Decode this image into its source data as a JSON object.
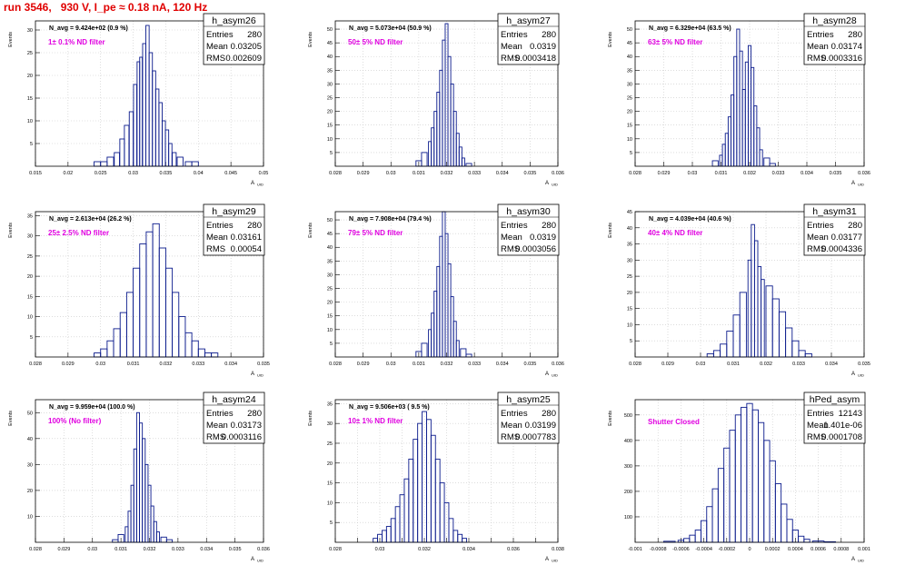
{
  "title": "run 3546,   930 V, I_pe ≈ 0.18 nA, 120 Hz",
  "colors": {
    "title": "#e00000",
    "histogram": "#0a1a8c",
    "annotation": "#e000e0",
    "grid": "#c8c8c8"
  },
  "common": {
    "ylabel": "Events",
    "xlabel": "A",
    "xlabel_sub": "UID"
  },
  "chart_data": [
    {
      "type": "bar",
      "name": "h_asym26",
      "nav_text": "N_avg = 9.424e+02 (0.9 %)",
      "annotation": "1± 0.1% ND filter",
      "stats": {
        "entries": "280",
        "mean": "0.03205",
        "rms": "0.002609"
      },
      "xlim": [
        0.015,
        0.05
      ],
      "ylim": [
        0,
        32
      ],
      "xticks": [
        0.015,
        0.02,
        0.025,
        0.03,
        0.035,
        0.04,
        0.045,
        0.05
      ],
      "xtick_labels": [
        "0.015",
        "0.02",
        "0.025",
        "0.03",
        "0.035",
        "0.04",
        "0.045",
        "0.05"
      ],
      "yticks": [
        5,
        10,
        15,
        20,
        25,
        30
      ],
      "x": [
        0.0245,
        0.0255,
        0.0265,
        0.0275,
        0.0283,
        0.029,
        0.0297,
        0.0303,
        0.0308,
        0.0312,
        0.0317,
        0.0322,
        0.0327,
        0.0332,
        0.0337,
        0.0342,
        0.0347,
        0.0352,
        0.0357,
        0.0363,
        0.0372,
        0.0385,
        0.0395
      ],
      "values": [
        1,
        1,
        2,
        3,
        6,
        9,
        12,
        18,
        23,
        24,
        27,
        31,
        25,
        21,
        17,
        14,
        10,
        8,
        5,
        3,
        2,
        1,
        1
      ]
    },
    {
      "type": "bar",
      "name": "h_asym27",
      "nav_text": "N_avg = 5.073e+04 (50.9 %)",
      "annotation": "50± 5% ND filter",
      "stats": {
        "entries": "280",
        "mean": "0.0319",
        "rms": "0.0003418"
      },
      "xlim": [
        0.028,
        0.036
      ],
      "ylim": [
        0,
        53
      ],
      "xticks": [
        0.028,
        0.029,
        0.03,
        0.031,
        0.032,
        0.033,
        0.034,
        0.035,
        0.036
      ],
      "xtick_labels": [
        "0.028",
        "0.029",
        "0.03",
        "0.031",
        "0.032",
        "0.033",
        "0.034",
        "0.035",
        "0.036"
      ],
      "yticks": [
        5,
        10,
        15,
        20,
        25,
        30,
        35,
        40,
        45,
        50
      ],
      "x": [
        0.031,
        0.0312,
        0.0314,
        0.0315,
        0.0316,
        0.0317,
        0.0318,
        0.0319,
        0.032,
        0.0321,
        0.0322,
        0.0323,
        0.0324,
        0.0325,
        0.0326,
        0.0328
      ],
      "values": [
        2,
        5,
        9,
        14,
        20,
        27,
        35,
        46,
        52,
        40,
        30,
        20,
        12,
        7,
        3,
        1
      ]
    },
    {
      "type": "bar",
      "name": "h_asym28",
      "nav_text": "N_avg = 6.329e+04 (63.5 %)",
      "annotation": "63± 5% ND filter",
      "stats": {
        "entries": "280",
        "mean": "0.03174",
        "rms": "0.0003316"
      },
      "xlim": [
        0.028,
        0.036
      ],
      "ylim": [
        0,
        53
      ],
      "xticks": [
        0.028,
        0.029,
        0.03,
        0.031,
        0.032,
        0.033,
        0.034,
        0.035,
        0.036
      ],
      "xtick_labels": [
        "0.028",
        "0.029",
        "0.03",
        "0.031",
        "0.032",
        "0.033",
        "0.034",
        "0.035",
        "0.036"
      ],
      "yticks": [
        5,
        10,
        15,
        20,
        25,
        30,
        35,
        40,
        45,
        50
      ],
      "x": [
        0.0308,
        0.031,
        0.0311,
        0.0312,
        0.0313,
        0.0314,
        0.0315,
        0.0316,
        0.0317,
        0.0318,
        0.0319,
        0.032,
        0.0321,
        0.0322,
        0.0323,
        0.0324,
        0.0326,
        0.0328
      ],
      "values": [
        2,
        4,
        8,
        12,
        18,
        26,
        40,
        50,
        42,
        28,
        38,
        44,
        36,
        22,
        14,
        6,
        3,
        1
      ]
    },
    {
      "type": "bar",
      "name": "h_asym29",
      "nav_text": "N_avg = 2.613e+04 (26.2 %)",
      "annotation": "25± 2.5% ND filter",
      "stats": {
        "entries": "280",
        "mean": "0.03161",
        "rms": "0.00054"
      },
      "xlim": [
        0.028,
        0.035
      ],
      "ylim": [
        0,
        36
      ],
      "xticks": [
        0.028,
        0.029,
        0.03,
        0.031,
        0.032,
        0.033,
        0.034,
        0.035
      ],
      "xtick_labels": [
        "0.028",
        "0.029",
        "0.03",
        "0.031",
        "0.032",
        "0.033",
        "0.034",
        "0.035"
      ],
      "yticks": [
        5,
        10,
        15,
        20,
        25,
        30,
        35
      ],
      "x": [
        0.0299,
        0.0301,
        0.0303,
        0.0305,
        0.0307,
        0.0309,
        0.0311,
        0.0313,
        0.0315,
        0.0317,
        0.0319,
        0.0321,
        0.0323,
        0.0325,
        0.0327,
        0.0329,
        0.0331,
        0.0333,
        0.0335
      ],
      "values": [
        1,
        2,
        4,
        7,
        11,
        16,
        22,
        28,
        31,
        33,
        27,
        22,
        16,
        10,
        6,
        4,
        2,
        1,
        1
      ]
    },
    {
      "type": "bar",
      "name": "h_asym30",
      "nav_text": "N_avg = 7.908e+04 (79.4 %)",
      "annotation": "79± 5% ND filter",
      "stats": {
        "entries": "280",
        "mean": "0.0319",
        "rms": "0.0003056"
      },
      "xlim": [
        0.028,
        0.036
      ],
      "ylim": [
        0,
        53
      ],
      "xticks": [
        0.028,
        0.029,
        0.03,
        0.031,
        0.032,
        0.033,
        0.034,
        0.035,
        0.036
      ],
      "xtick_labels": [
        "0.028",
        "0.029",
        "0.03",
        "0.031",
        "0.032",
        "0.033",
        "0.034",
        "0.035",
        "0.036"
      ],
      "yticks": [
        5,
        10,
        15,
        20,
        25,
        30,
        35,
        40,
        45,
        50
      ],
      "x": [
        0.031,
        0.0312,
        0.0314,
        0.0315,
        0.0316,
        0.0317,
        0.0318,
        0.0319,
        0.032,
        0.0321,
        0.0322,
        0.0323,
        0.0324,
        0.0326,
        0.0328
      ],
      "values": [
        2,
        5,
        10,
        16,
        24,
        33,
        44,
        53,
        45,
        34,
        22,
        13,
        6,
        3,
        1
      ]
    },
    {
      "type": "bar",
      "name": "h_asym31",
      "nav_text": "N_avg = 4.039e+04 (40.6 %)",
      "annotation": "40± 4% ND filter",
      "stats": {
        "entries": "280",
        "mean": "0.03177",
        "rms": "0.0004336"
      },
      "xlim": [
        0.028,
        0.035
      ],
      "ylim": [
        0,
        45
      ],
      "xticks": [
        0.028,
        0.029,
        0.03,
        0.031,
        0.032,
        0.033,
        0.034,
        0.035
      ],
      "xtick_labels": [
        "0.028",
        "0.029",
        "0.03",
        "0.031",
        "0.032",
        "0.033",
        "0.034",
        "0.035"
      ],
      "yticks": [
        5,
        10,
        15,
        20,
        25,
        30,
        35,
        40,
        45
      ],
      "x": [
        0.0303,
        0.0305,
        0.0307,
        0.0309,
        0.0311,
        0.0313,
        0.0315,
        0.0316,
        0.0317,
        0.0318,
        0.0319,
        0.0321,
        0.0323,
        0.0325,
        0.0327,
        0.0329,
        0.0331,
        0.0333
      ],
      "values": [
        1,
        2,
        4,
        8,
        13,
        20,
        30,
        41,
        36,
        28,
        24,
        22,
        18,
        14,
        9,
        5,
        2,
        1
      ]
    },
    {
      "type": "bar",
      "name": "h_asym24",
      "nav_text": "N_avg = 9.959e+04 (100.0 %)",
      "annotation": "100% (No filter)",
      "stats": {
        "entries": "280",
        "mean": "0.03173",
        "rms": "0.0003116"
      },
      "xlim": [
        0.028,
        0.036
      ],
      "ylim": [
        0,
        55
      ],
      "xticks": [
        0.028,
        0.029,
        0.03,
        0.031,
        0.032,
        0.033,
        0.034,
        0.035,
        0.036
      ],
      "xtick_labels": [
        "0.028",
        "0.029",
        "0.03",
        "0.031",
        "0.032",
        "0.033",
        "0.034",
        "0.035",
        "0.036"
      ],
      "yticks": [
        10,
        20,
        30,
        40,
        50
      ],
      "x": [
        0.0308,
        0.031,
        0.0312,
        0.0313,
        0.0314,
        0.0315,
        0.0316,
        0.0317,
        0.0318,
        0.0319,
        0.032,
        0.0321,
        0.0322,
        0.0323,
        0.0325,
        0.0327
      ],
      "values": [
        1,
        3,
        6,
        12,
        22,
        36,
        50,
        46,
        40,
        30,
        22,
        14,
        8,
        4,
        2,
        1
      ]
    },
    {
      "type": "bar",
      "name": "h_asym25",
      "nav_text": "N_avg = 9.506e+03 ( 9.5 %)",
      "annotation": "10± 1% ND filter",
      "stats": {
        "entries": "280",
        "mean": "0.03199",
        "rms": "0.0007783"
      },
      "xlim": [
        0.028,
        0.038
      ],
      "ylim": [
        0,
        36
      ],
      "xticks": [
        0.028,
        0.029,
        0.03,
        0.031,
        0.032,
        0.033,
        0.034,
        0.035,
        0.036,
        0.037,
        0.038
      ],
      "xtick_labels": [
        "0.028",
        "",
        "0.03",
        "",
        "0.032",
        "",
        "0.034",
        "",
        "0.036",
        "",
        "0.038"
      ],
      "yticks": [
        5,
        10,
        15,
        20,
        25,
        30,
        35
      ],
      "x": [
        0.0298,
        0.03,
        0.0302,
        0.0304,
        0.0306,
        0.0308,
        0.031,
        0.0312,
        0.0314,
        0.0316,
        0.0318,
        0.032,
        0.0322,
        0.0324,
        0.0326,
        0.0328,
        0.033,
        0.0332,
        0.0334,
        0.0336,
        0.0338
      ],
      "values": [
        1,
        2,
        3,
        4,
        6,
        9,
        12,
        16,
        21,
        26,
        30,
        33,
        31,
        27,
        21,
        15,
        10,
        6,
        3,
        2,
        1
      ]
    },
    {
      "type": "bar",
      "name": "hPed_asym",
      "nav_text": "",
      "annotation": "Shutter Closed",
      "stats": {
        "entries": "12143",
        "mean": "1.401e-06",
        "rms": "0.0001708"
      },
      "xlim": [
        -0.001,
        0.001
      ],
      "ylim": [
        0,
        560
      ],
      "xticks": [
        -0.001,
        -0.0008,
        -0.0006,
        -0.0004,
        -0.0002,
        0,
        0.0002,
        0.0004,
        0.0006,
        0.0008,
        0.001
      ],
      "xtick_labels": [
        "-0.001",
        "-0.0008",
        "-0.0006",
        "-0.0004",
        "-0.0002",
        "0",
        "0.0002",
        "0.0004",
        "0.0006",
        "0.0008",
        "0.001"
      ],
      "yticks": [
        100,
        200,
        300,
        400,
        500
      ],
      "x": [
        -0.0007,
        -0.0006,
        -0.00055,
        -0.0005,
        -0.00045,
        -0.0004,
        -0.00035,
        -0.0003,
        -0.00025,
        -0.0002,
        -0.00015,
        -0.0001,
        -5e-05,
        0,
        5e-05,
        0.0001,
        0.00015,
        0.0002,
        0.00025,
        0.0003,
        0.00035,
        0.0004,
        0.00045,
        0.0005,
        0.0006,
        0.0007
      ],
      "values": [
        4,
        8,
        15,
        28,
        48,
        85,
        140,
        210,
        290,
        370,
        440,
        500,
        530,
        545,
        520,
        470,
        400,
        320,
        230,
        150,
        90,
        48,
        24,
        12,
        5,
        2
      ]
    }
  ]
}
